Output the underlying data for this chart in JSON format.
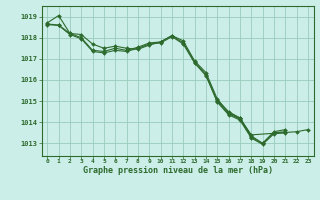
{
  "title": "Graphe pression niveau de la mer (hPa)",
  "bg_color": "#cceee8",
  "grid_color": "#99ccbb",
  "line_color": "#2d6a2d",
  "xlim": [
    -0.5,
    23.5
  ],
  "ylim": [
    1012.4,
    1019.5
  ],
  "yticks": [
    1013,
    1014,
    1015,
    1016,
    1017,
    1018,
    1019
  ],
  "xticks": [
    0,
    1,
    2,
    3,
    4,
    5,
    6,
    7,
    8,
    9,
    10,
    11,
    12,
    13,
    14,
    15,
    16,
    17,
    18,
    19,
    20,
    21,
    22,
    23
  ],
  "series": [
    {
      "x": [
        0,
        1,
        2,
        3,
        4,
        5,
        6,
        7,
        8,
        9,
        10,
        11,
        12,
        13,
        14,
        15,
        16,
        17,
        18,
        19,
        20,
        21
      ],
      "y": [
        1018.7,
        1019.05,
        1018.2,
        1018.15,
        1017.7,
        1017.5,
        1017.6,
        1017.5,
        1017.45,
        1017.65,
        1017.8,
        1018.1,
        1017.85,
        1016.9,
        1016.35,
        1015.1,
        1014.45,
        1014.2,
        1013.35,
        1013.0,
        1013.55,
        1013.65
      ]
    },
    {
      "x": [
        0,
        1,
        2,
        3,
        4,
        5,
        6,
        7,
        8,
        9,
        10,
        11,
        12,
        13,
        14,
        15,
        16,
        17,
        18,
        19,
        20,
        21
      ],
      "y": [
        1018.65,
        1018.6,
        1018.2,
        1018.0,
        1017.4,
        1017.35,
        1017.5,
        1017.4,
        1017.55,
        1017.75,
        1017.8,
        1018.1,
        1017.75,
        1016.85,
        1016.25,
        1015.0,
        1014.4,
        1014.15,
        1013.3,
        1013.0,
        1013.5,
        1013.55
      ]
    },
    {
      "x": [
        0,
        1,
        2,
        3,
        4,
        5,
        6,
        7,
        8,
        9,
        10,
        11,
        12,
        13,
        14,
        15,
        16,
        17,
        18,
        19,
        20,
        21
      ],
      "y": [
        1018.62,
        1018.58,
        1018.15,
        1017.95,
        1017.35,
        1017.28,
        1017.4,
        1017.35,
        1017.5,
        1017.7,
        1017.75,
        1018.05,
        1017.7,
        1016.8,
        1016.2,
        1014.95,
        1014.35,
        1014.1,
        1013.25,
        1012.95,
        1013.45,
        1013.5
      ]
    },
    {
      "x": [
        15,
        16,
        17,
        18,
        22,
        23
      ],
      "y": [
        1015.05,
        1014.5,
        1014.2,
        1013.4,
        1013.55,
        1013.65
      ]
    }
  ]
}
